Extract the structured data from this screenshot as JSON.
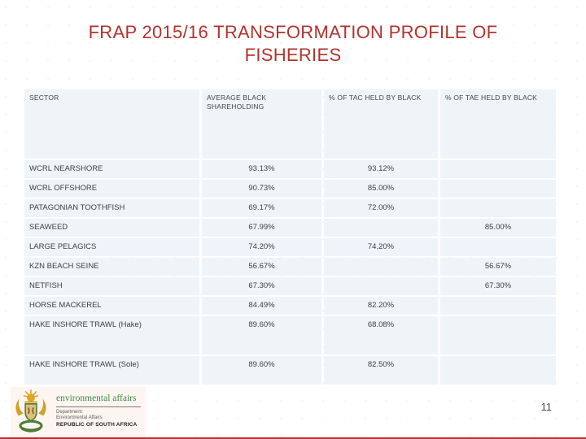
{
  "slide": {
    "title": {
      "line1": "FRAP 2015/16 TRANSFORMATION PROFILE OF",
      "line2": "FISHERIES"
    }
  },
  "colors": {
    "title_red": "#b3322c",
    "cell_bg": "#eef4f8",
    "brand_green": "#3f8c3f"
  },
  "table": {
    "columns": [
      "SECTOR",
      "AVERAGE BLACK SHAREHOLDING",
      "% OF TAC HELD BY BLACK",
      "% OF TAE HELD BY BLACK"
    ],
    "rows": [
      {
        "sector": "WCRL NEARSHORE",
        "avg_black_shareholding": "93.13%",
        "tac_held_by_black": "93.12%",
        "tae_held_by_black": ""
      },
      {
        "sector": "WCRL OFFSHORE",
        "avg_black_shareholding": "90.73%",
        "tac_held_by_black": "85.00%",
        "tae_held_by_black": ""
      },
      {
        "sector": "PATAGONIAN TOOTHFISH",
        "avg_black_shareholding": "69.17%",
        "tac_held_by_black": "72.00%",
        "tae_held_by_black": ""
      },
      {
        "sector": "SEAWEED",
        "avg_black_shareholding": "67.99%",
        "tac_held_by_black": "",
        "tae_held_by_black": "85.00%"
      },
      {
        "sector": "LARGE PELAGICS",
        "avg_black_shareholding": "74.20%",
        "tac_held_by_black": "74.20%",
        "tae_held_by_black": ""
      },
      {
        "sector": "KZN BEACH SEINE",
        "avg_black_shareholding": "56.67%",
        "tac_held_by_black": "",
        "tae_held_by_black": "56.67%"
      },
      {
        "sector": "NETFISH",
        "avg_black_shareholding": "67.30%",
        "tac_held_by_black": "",
        "tae_held_by_black": "67.30%"
      },
      {
        "sector": "HORSE MACKEREL",
        "avg_black_shareholding": "84.49%",
        "tac_held_by_black": "82.20%",
        "tae_held_by_black": ""
      },
      {
        "sector": "HAKE INSHORE TRAWL (Hake)",
        "avg_black_shareholding": "89.60%",
        "tac_held_by_black": "68.08%",
        "tae_held_by_black": ""
      },
      {
        "sector": "HAKE INSHORE TRAWL (Sole)",
        "avg_black_shareholding": "89.60%",
        "tac_held_by_black": "82.50%",
        "tae_held_by_black": ""
      }
    ]
  },
  "footer": {
    "logo": {
      "emblem": "south-africa-coat-of-arms",
      "brand": "environmental affairs",
      "department_label": "Department:",
      "department_name": "Environmental Affairs",
      "country": "REPUBLIC OF SOUTH AFRICA"
    },
    "page_number": "11"
  }
}
